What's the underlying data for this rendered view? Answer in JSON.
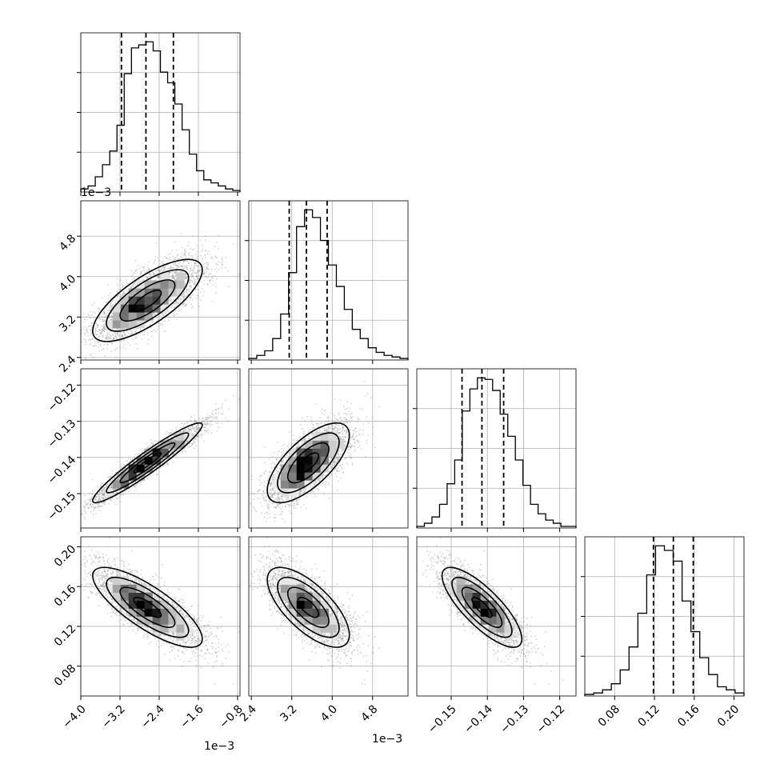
{
  "chart_data": {
    "type": "corner",
    "parameters": [
      {
        "ticks": [
          -4.0,
          -3.2,
          -2.4,
          -1.6,
          -0.8
        ],
        "tick_labels": [
          "−4.0",
          "−3.2",
          "−2.4",
          "−1.6",
          "−0.8"
        ],
        "range": [
          -4.0,
          -0.75
        ],
        "offset_label": "1e−3",
        "quantiles": [
          -3.17,
          -2.67,
          -2.11
        ],
        "mean": -2.67,
        "sd": 0.52,
        "histogram": [
          2,
          4,
          10,
          18,
          27,
          44,
          78,
          95,
          97,
          99,
          93,
          79,
          72,
          58,
          41,
          25,
          14,
          8,
          6,
          4,
          2,
          1
        ]
      },
      {
        "ticks": [
          2.4,
          3.2,
          4.0,
          4.8
        ],
        "tick_labels": [
          "2.4",
          "3.2",
          "4.0",
          "4.8"
        ],
        "range": [
          2.35,
          5.5
        ],
        "offset_label": "1e−3",
        "quantiles": [
          3.15,
          3.49,
          3.9
        ],
        "mean": 3.5,
        "sd": 0.38,
        "histogram": [
          1,
          3,
          6,
          14,
          30,
          57,
          87,
          98,
          93,
          78,
          62,
          48,
          33,
          20,
          14,
          8,
          5,
          3,
          2,
          1
        ]
      },
      {
        "ticks": [
          -0.15,
          -0.14,
          -0.13,
          -0.12
        ],
        "tick_labels": [
          "−0.15",
          "−0.14",
          "−0.13",
          "−0.12"
        ],
        "range": [
          -0.1595,
          -0.1155
        ],
        "offset_label": "",
        "quantiles": [
          -0.147,
          -0.1415,
          -0.1355
        ],
        "mean": -0.1415,
        "sd": 0.0055,
        "histogram": [
          1,
          3,
          7,
          15,
          28,
          43,
          74,
          88,
          95,
          94,
          87,
          72,
          58,
          43,
          27,
          15,
          9,
          5,
          3,
          1,
          1
        ]
      },
      {
        "ticks": [
          0.08,
          0.12,
          0.16,
          0.2
        ],
        "tick_labels": [
          "0.08",
          "0.12",
          "0.16",
          "0.20"
        ],
        "range": [
          0.05,
          0.21
        ],
        "offset_label": "",
        "quantiles": [
          0.119,
          0.139,
          0.159
        ],
        "mean": 0.139,
        "sd": 0.02,
        "histogram": [
          1,
          2,
          4,
          8,
          17,
          32,
          54,
          79,
          98,
          95,
          88,
          62,
          42,
          25,
          14,
          6,
          4,
          2
        ]
      }
    ],
    "correlations": [
      [
        1,
        0.75,
        0.95,
        -0.8
      ],
      [
        0.75,
        1,
        0.7,
        -0.7
      ],
      [
        0.95,
        0.7,
        1,
        -0.8
      ],
      [
        -0.8,
        -0.7,
        -0.8,
        1
      ]
    ],
    "grid": true,
    "colors": {
      "points": "#8a8a8a",
      "density": "#000000",
      "contours": "#000000",
      "quantile_lines": "#000000"
    }
  }
}
